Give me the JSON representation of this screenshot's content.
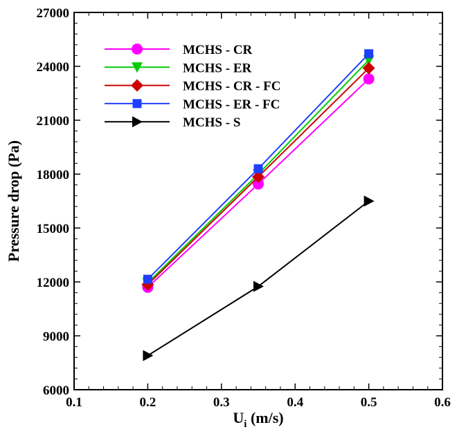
{
  "chart_data": {
    "type": "line",
    "xlabel": "U",
    "xlabel_subscript": "i",
    "xlabel_unit": " (m/s)",
    "ylabel": "Pressure drop (Pa)",
    "xlim": [
      0.1,
      0.6
    ],
    "ylim": [
      6000,
      27000
    ],
    "x_ticks": [
      0.1,
      0.2,
      0.3,
      0.4,
      0.5,
      0.6
    ],
    "y_ticks": [
      6000,
      9000,
      12000,
      15000,
      18000,
      21000,
      24000,
      27000
    ],
    "x_tick_labels": [
      "0.1",
      "0.2",
      "0.3",
      "0.4",
      "0.5",
      "0.6"
    ],
    "y_tick_labels": [
      "6000",
      "9000",
      "12000",
      "15000",
      "18000",
      "21000",
      "24000",
      "27000"
    ],
    "grid": false,
    "legend_position": "top-left",
    "x": [
      0.2,
      0.35,
      0.5
    ],
    "series": [
      {
        "name": "MCHS - CR",
        "values": [
          11700,
          17450,
          23300
        ],
        "color": "#ff00ff",
        "marker": "circle"
      },
      {
        "name": "MCHS - ER",
        "values": [
          11950,
          18000,
          24350
        ],
        "color": "#00cc00",
        "marker": "triangle-down"
      },
      {
        "name": "MCHS - CR - FC",
        "values": [
          11850,
          17850,
          23900
        ],
        "color": "#cc0000",
        "marker": "diamond"
      },
      {
        "name": "MCHS - ER - FC",
        "values": [
          12150,
          18300,
          24700
        ],
        "color": "#1f3fff",
        "marker": "square"
      },
      {
        "name": "MCHS - S",
        "values": [
          7900,
          11750,
          16500
        ],
        "color": "#000000",
        "marker": "triangle-right"
      }
    ]
  }
}
